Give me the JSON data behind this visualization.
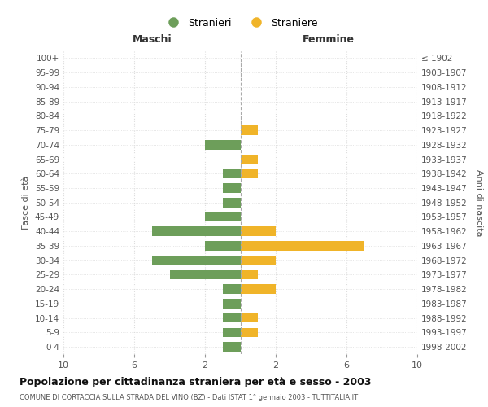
{
  "age_groups": [
    "0-4",
    "5-9",
    "10-14",
    "15-19",
    "20-24",
    "25-29",
    "30-34",
    "35-39",
    "40-44",
    "45-49",
    "50-54",
    "55-59",
    "60-64",
    "65-69",
    "70-74",
    "75-79",
    "80-84",
    "85-89",
    "90-94",
    "95-99",
    "100+"
  ],
  "birth_years": [
    "1998-2002",
    "1993-1997",
    "1988-1992",
    "1983-1987",
    "1978-1982",
    "1973-1977",
    "1968-1972",
    "1963-1967",
    "1958-1962",
    "1953-1957",
    "1948-1952",
    "1943-1947",
    "1938-1942",
    "1933-1937",
    "1928-1932",
    "1923-1927",
    "1918-1922",
    "1913-1917",
    "1908-1912",
    "1903-1907",
    "≤ 1902"
  ],
  "maschi": [
    1,
    1,
    1,
    1,
    1,
    4,
    5,
    2,
    5,
    2,
    1,
    1,
    1,
    0,
    2,
    0,
    0,
    0,
    0,
    0,
    0
  ],
  "femmine": [
    0,
    1,
    1,
    0,
    2,
    1,
    2,
    7,
    2,
    0,
    0,
    0,
    1,
    1,
    0,
    1,
    0,
    0,
    0,
    0,
    0
  ],
  "maschi_color": "#6d9e5a",
  "femmine_color": "#f0b429",
  "center_line_color": "#aaaaaa",
  "grid_color": "#dddddd",
  "title": "Popolazione per cittadinanza straniera per età e sesso - 2003",
  "subtitle": "COMUNE DI CORTACCIA SULLA STRADA DEL VINO (BZ) - Dati ISTAT 1° gennaio 2003 - TUTTITALIA.IT",
  "ylabel_left": "Fasce di età",
  "ylabel_right": "Anni di nascita",
  "legend_stranieri": "Stranieri",
  "legend_straniere": "Straniere",
  "xlim": 10,
  "background_color": "#ffffff",
  "maschi_label": "Maschi",
  "femmine_label": "Femmine"
}
